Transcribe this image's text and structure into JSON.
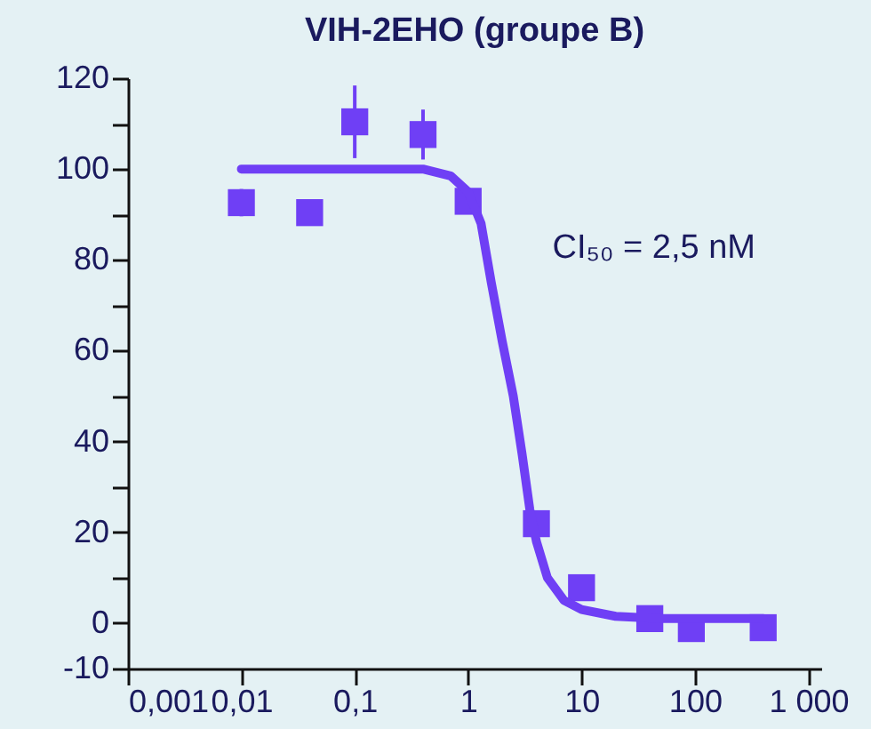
{
  "chart_data": {
    "type": "scatter",
    "title": "VIH-2EHO (groupe B)",
    "marker": "square",
    "grid": false,
    "log": "x",
    "xlim": [
      0.001,
      1300
    ],
    "xticks": [
      {
        "value": 0.001,
        "label": "0,001"
      },
      {
        "value": 0.01,
        "label": "0,01"
      },
      {
        "value": 0.1,
        "label": "0,1"
      },
      1,
      10,
      100,
      {
        "value": 1000,
        "label": "1 000"
      }
    ],
    "ylim": [
      -10,
      120
    ],
    "yticks": [
      -10,
      0,
      {
        "value": 10,
        "label": null
      },
      20,
      {
        "value": 30,
        "label": null
      },
      40,
      {
        "value": 50,
        "label": null
      },
      60,
      {
        "value": 70,
        "label": null
      },
      80,
      {
        "value": 90,
        "label": null
      },
      100,
      {
        "value": 110,
        "label": null
      },
      120
    ],
    "annotations": [
      "CI₅₀ = 2,5 nM"
    ],
    "series": [
      {
        "color": "#6f3ff5",
        "x": [
          0.01,
          0.04,
          0.1,
          0.4,
          1,
          4,
          10,
          40,
          93,
          400
        ],
        "values": [
          92.6,
          90.4,
          110.4,
          107.6,
          92.9,
          21.9,
          7.8,
          1,
          -1.2,
          -1
        ],
        "errors": [
          3,
          null,
          8,
          5.5,
          null,
          null,
          null,
          null,
          null,
          null
        ]
      },
      {
        "type": "line",
        "color": "#6f3ff5",
        "marker": "none",
        "line_style": "solid",
        "x": [
          0.01,
          0.4,
          0.7,
          1,
          1.3,
          1.6,
          2,
          2.5,
          3,
          3.5,
          4,
          5,
          7,
          10,
          20,
          50,
          400
        ],
        "values": [
          100,
          100,
          98.5,
          95,
          88,
          75,
          62,
          50,
          37,
          25,
          18,
          10,
          5,
          3,
          1.5,
          1,
          1
        ]
      }
    ]
  }
}
